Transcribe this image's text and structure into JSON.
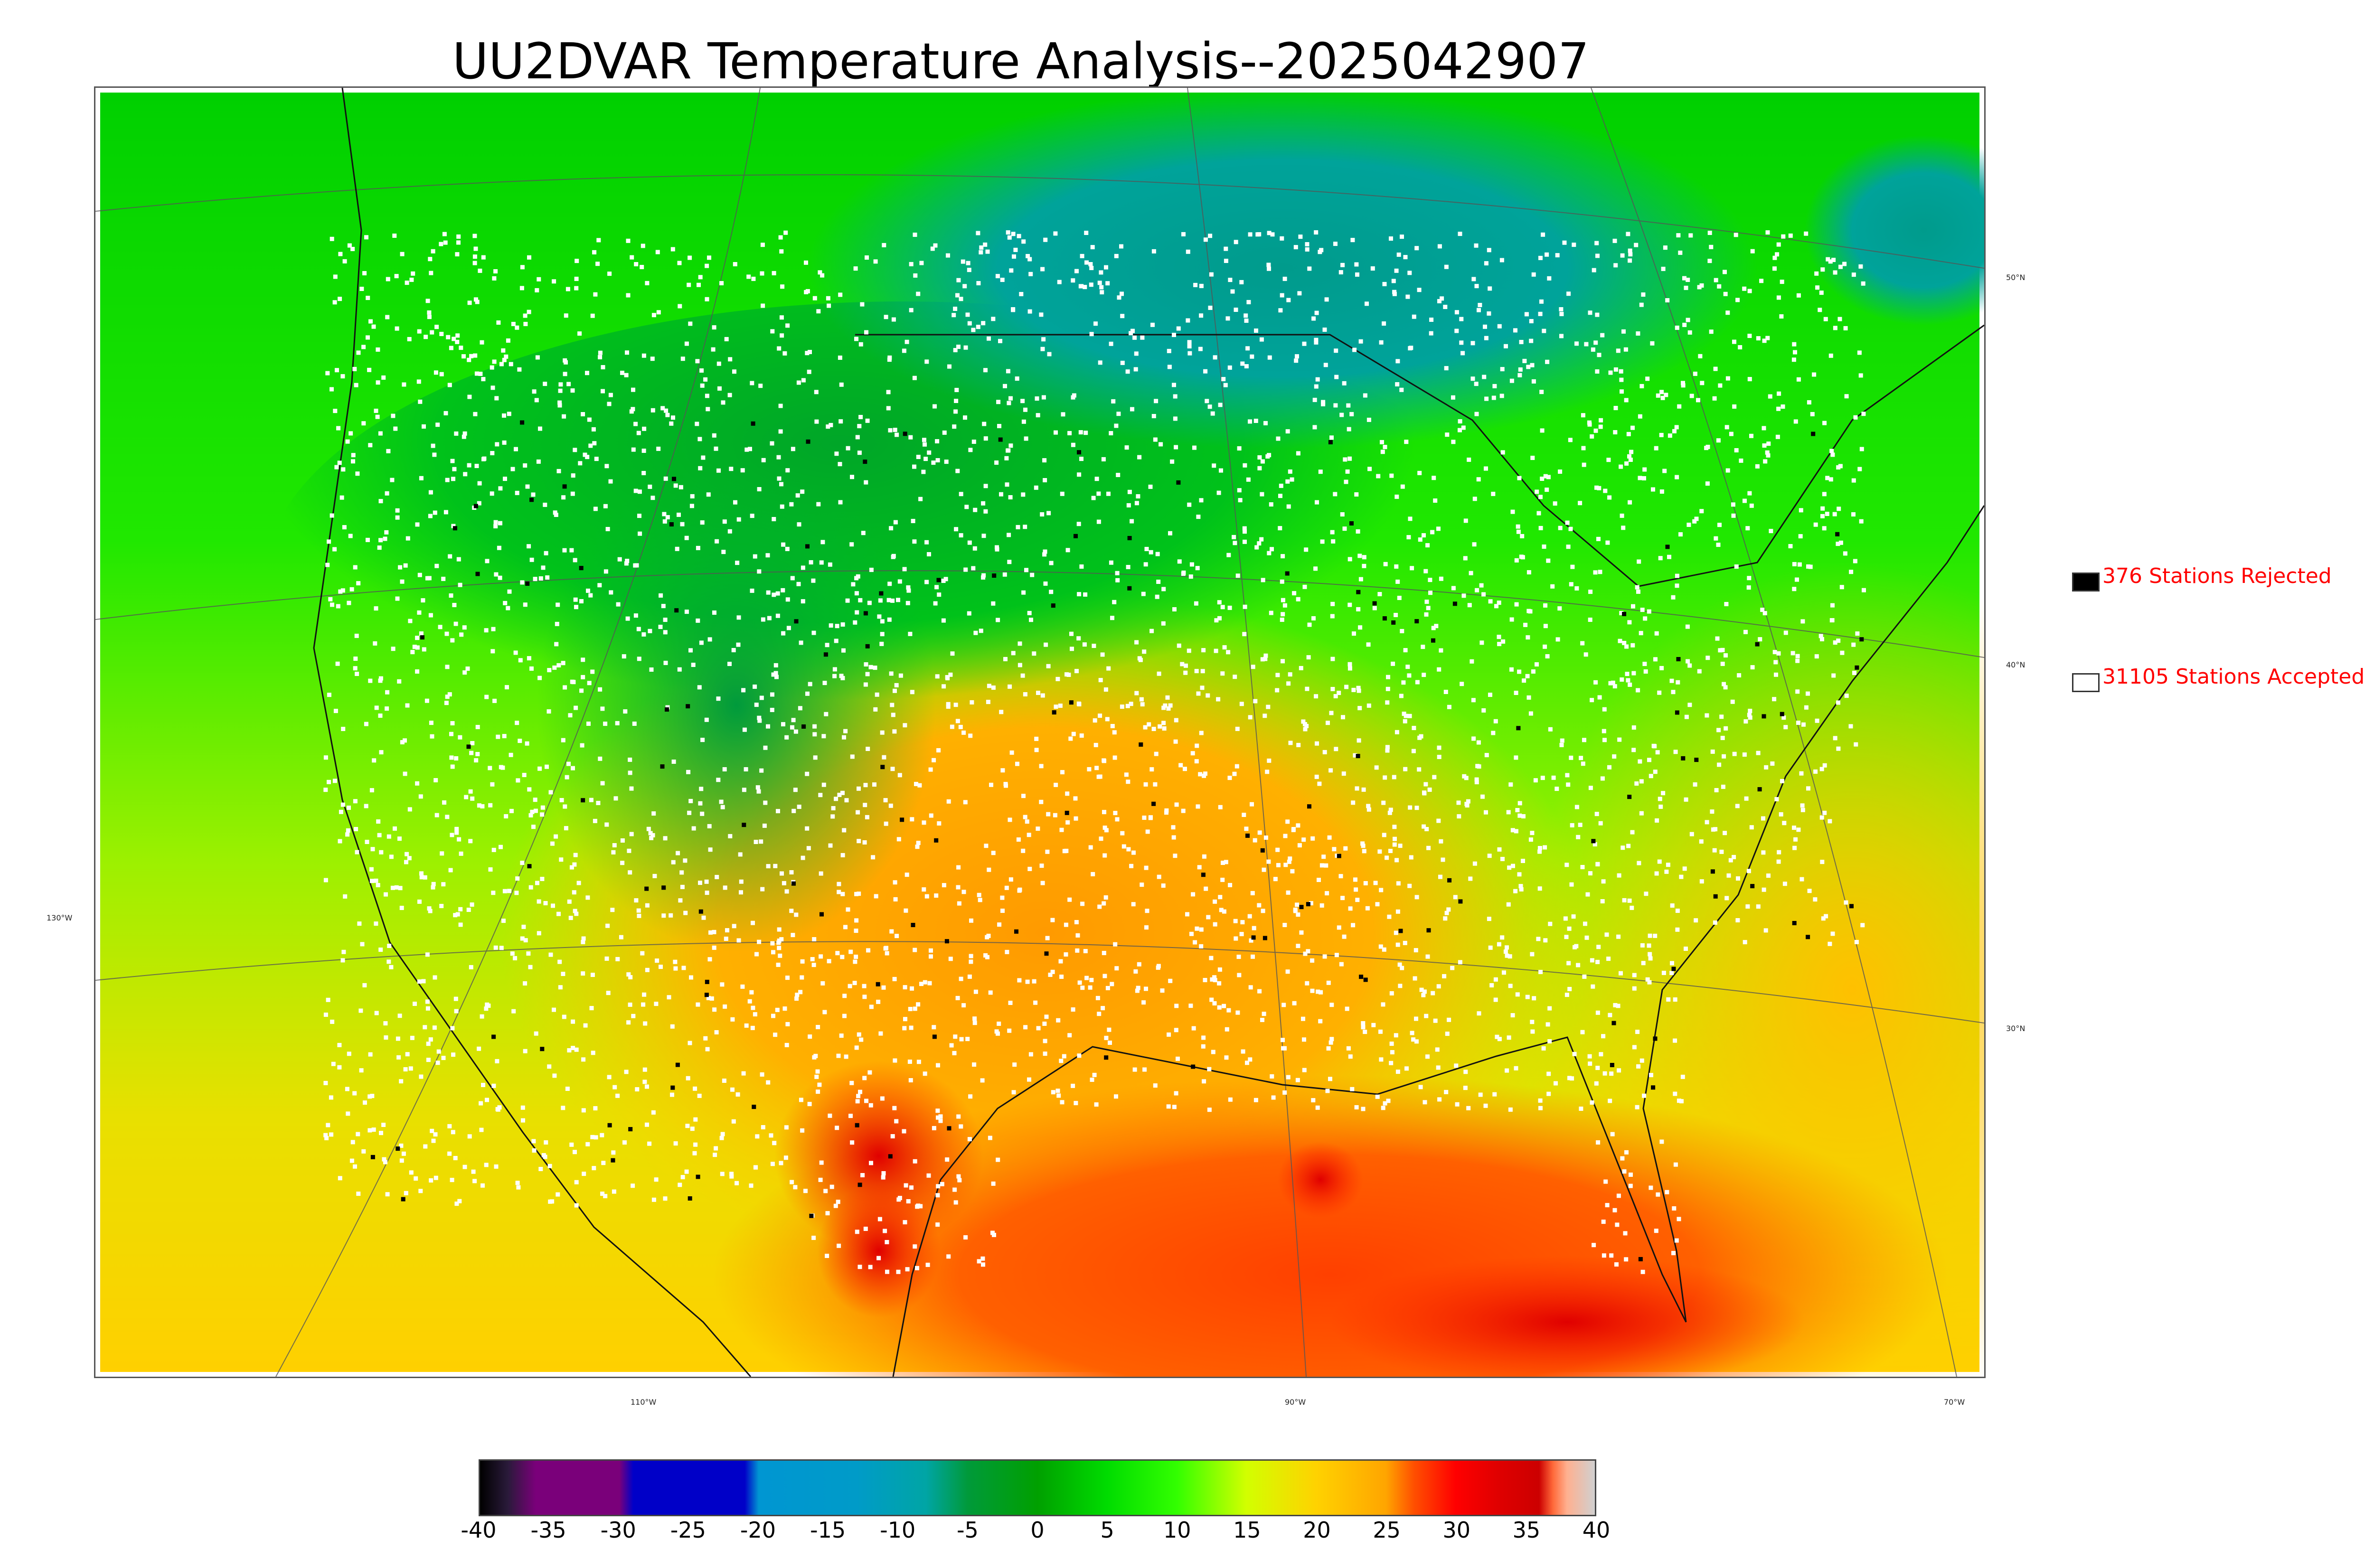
{
  "title": "UU2DVAR Temperature Analysis--2025042907",
  "map": {
    "lat_labels": [
      "50°N",
      "40°N",
      "30°N"
    ],
    "lon_labels": [
      "130°W",
      "110°W",
      "90°W",
      "70°W"
    ]
  },
  "legend": {
    "rejected": {
      "label": "376 Stations Rejected",
      "color": "#000000"
    },
    "accepted": {
      "label": "31105 Stations Accepted",
      "color": "#ffffff"
    },
    "text_color": "#ff0000"
  },
  "colorbar": {
    "min": -40,
    "max": 40,
    "ticks": [
      "-40",
      "-35",
      "-30",
      "-25",
      "-20",
      "-15",
      "-10",
      "-5",
      "0",
      "5",
      "10",
      "15",
      "20",
      "25",
      "30",
      "35",
      "40"
    ],
    "stops": [
      {
        "value": -40,
        "color": "#000000"
      },
      {
        "value": -38,
        "color": "#2a1a3a"
      },
      {
        "value": -36,
        "color": "#7a007a"
      },
      {
        "value": -30,
        "color": "#7a007a"
      },
      {
        "value": -29,
        "color": "#0000c8"
      },
      {
        "value": -21,
        "color": "#0000c8"
      },
      {
        "value": -20,
        "color": "#0096d2"
      },
      {
        "value": -13,
        "color": "#009bc8"
      },
      {
        "value": -8,
        "color": "#00a5a5"
      },
      {
        "value": -5,
        "color": "#009a3a"
      },
      {
        "value": 0,
        "color": "#00a000"
      },
      {
        "value": 5,
        "color": "#00dc00"
      },
      {
        "value": 10,
        "color": "#32ff00"
      },
      {
        "value": 15,
        "color": "#d2ff00"
      },
      {
        "value": 20,
        "color": "#ffd200"
      },
      {
        "value": 25,
        "color": "#ffa500"
      },
      {
        "value": 27,
        "color": "#ff5000"
      },
      {
        "value": 30,
        "color": "#ff0000"
      },
      {
        "value": 33,
        "color": "#e00000"
      },
      {
        "value": 36,
        "color": "#cc0000"
      },
      {
        "value": 37,
        "color": "#ff6a3a"
      },
      {
        "value": 38,
        "color": "#ffb090"
      },
      {
        "value": 40,
        "color": "#d0d0d0"
      }
    ]
  }
}
